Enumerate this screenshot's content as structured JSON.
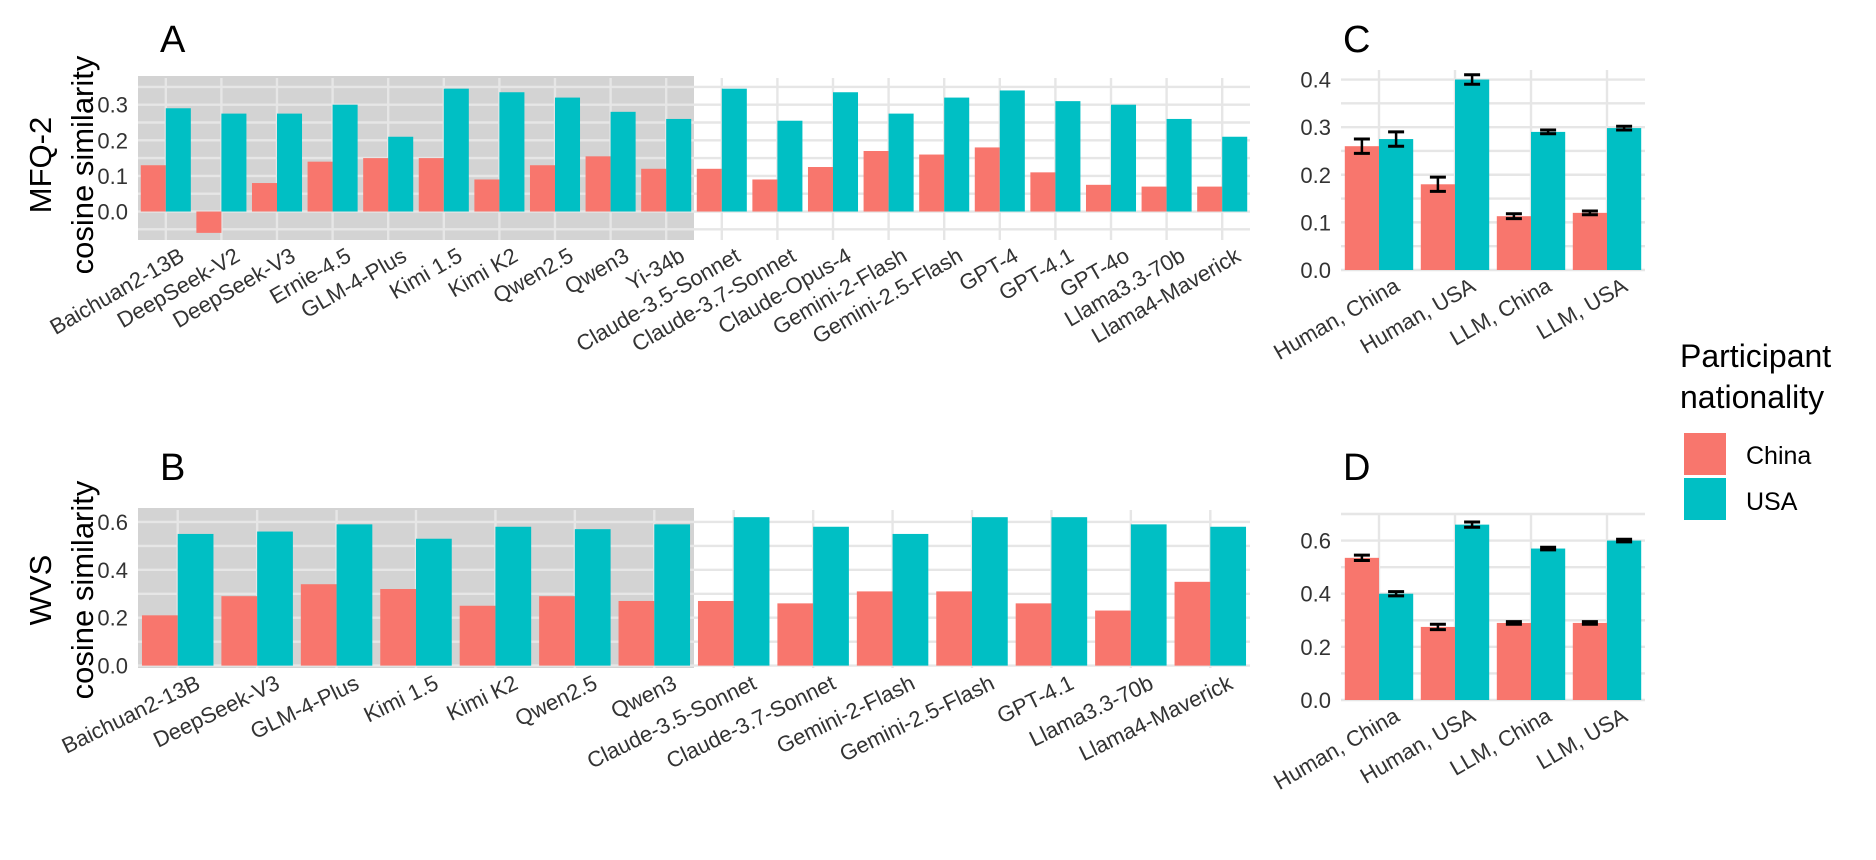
{
  "colors": {
    "China": "#F8766D",
    "USA": "#00BFC4",
    "shade": "#d3d3d3",
    "grid": "#e6e6e6"
  },
  "legend": {
    "title_line1": "Participant",
    "title_line2": "nationality",
    "entries": [
      "China",
      "USA"
    ]
  },
  "chart_data": [
    {
      "id": "A",
      "type": "bar",
      "panel": "A",
      "ylabel_line1": "MFQ-2",
      "ylabel_line2": "cosine similarity",
      "ylim": [
        -0.08,
        0.375
      ],
      "yticks": [
        0.0,
        0.1,
        0.2,
        0.3
      ],
      "ytick_labels": [
        "0.0",
        "0.1",
        "0.2",
        "0.3"
      ],
      "shaded_categories": 10,
      "categories": [
        "Baichuan2-13B",
        "DeepSeek-V2",
        "DeepSeek-V3",
        "Ernie-4.5",
        "GLM-4-Plus",
        "Kimi 1.5",
        "Kimi K2",
        "Qwen2.5",
        "Qwen3",
        "Yi-34b",
        "Claude-3.5-Sonnet",
        "Claude-3.7-Sonnet",
        "Claude-Opus-4",
        "Gemini-2-Flash",
        "Gemini-2.5-Flash",
        "GPT-4",
        "GPT-4.1",
        "GPT-4o",
        "Llama3.3-70b",
        "Llama4-Maverick"
      ],
      "series": [
        {
          "name": "China",
          "values": [
            0.13,
            -0.06,
            0.08,
            0.14,
            0.15,
            0.15,
            0.09,
            0.13,
            0.155,
            0.12,
            0.12,
            0.09,
            0.125,
            0.17,
            0.16,
            0.18,
            0.11,
            0.075,
            0.07,
            0.07
          ]
        },
        {
          "name": "USA",
          "values": [
            0.29,
            0.275,
            0.275,
            0.3,
            0.21,
            0.345,
            0.335,
            0.32,
            0.28,
            0.26,
            0.345,
            0.255,
            0.335,
            0.275,
            0.32,
            0.34,
            0.31,
            0.3,
            0.26,
            0.21
          ]
        }
      ]
    },
    {
      "id": "B",
      "type": "bar",
      "panel": "B",
      "ylabel_line1": "WVS",
      "ylabel_line2": "cosine similarity",
      "ylim": [
        -0.01,
        0.65
      ],
      "yticks": [
        0.0,
        0.2,
        0.4,
        0.6
      ],
      "ytick_labels": [
        "0.0",
        "0.2",
        "0.4",
        "0.6"
      ],
      "shaded_categories": 7,
      "categories": [
        "Baichuan2-13B",
        "DeepSeek-V3",
        "GLM-4-Plus",
        "Kimi 1.5",
        "Kimi K2",
        "Qwen2.5",
        "Qwen3",
        "Claude-3.5-Sonnet",
        "Claude-3.7-Sonnet",
        "Gemini-2-Flash",
        "Gemini-2.5-Flash",
        "GPT-4.1",
        "Llama3.3-70b",
        "Llama4-Maverick"
      ],
      "series": [
        {
          "name": "China",
          "values": [
            0.21,
            0.29,
            0.34,
            0.32,
            0.25,
            0.29,
            0.27,
            0.27,
            0.26,
            0.31,
            0.31,
            0.26,
            0.23,
            0.35
          ]
        },
        {
          "name": "USA",
          "values": [
            0.55,
            0.56,
            0.59,
            0.53,
            0.58,
            0.57,
            0.59,
            0.62,
            0.58,
            0.55,
            0.62,
            0.62,
            0.59,
            0.58
          ]
        }
      ]
    },
    {
      "id": "C",
      "type": "bar",
      "panel": "C",
      "ylim": [
        0.0,
        0.42
      ],
      "yticks": [
        0.0,
        0.1,
        0.2,
        0.3,
        0.4
      ],
      "ytick_labels": [
        "0.0",
        "0.1",
        "0.2",
        "0.3",
        "0.4"
      ],
      "categories": [
        "Human, China",
        "Human, USA",
        "LLM, China",
        "LLM, USA"
      ],
      "series": [
        {
          "name": "China",
          "values": [
            0.26,
            0.18,
            0.113,
            0.12
          ],
          "error": [
            0.015,
            0.015,
            0.005,
            0.004
          ]
        },
        {
          "name": "USA",
          "values": [
            0.275,
            0.4,
            0.29,
            0.298
          ],
          "error": [
            0.015,
            0.01,
            0.004,
            0.004
          ]
        }
      ]
    },
    {
      "id": "D",
      "type": "bar",
      "panel": "D",
      "ylim": [
        0.0,
        0.7
      ],
      "yticks": [
        0.0,
        0.2,
        0.4,
        0.6
      ],
      "ytick_labels": [
        "0.0",
        "0.2",
        "0.4",
        "0.6"
      ],
      "categories": [
        "Human, China",
        "Human, USA",
        "LLM, China",
        "LLM, USA"
      ],
      "series": [
        {
          "name": "China",
          "values": [
            0.535,
            0.275,
            0.29,
            0.29
          ],
          "error": [
            0.01,
            0.01,
            0.005,
            0.005
          ]
        },
        {
          "name": "USA",
          "values": [
            0.4,
            0.66,
            0.57,
            0.6
          ],
          "error": [
            0.008,
            0.01,
            0.005,
            0.005
          ]
        }
      ]
    }
  ]
}
